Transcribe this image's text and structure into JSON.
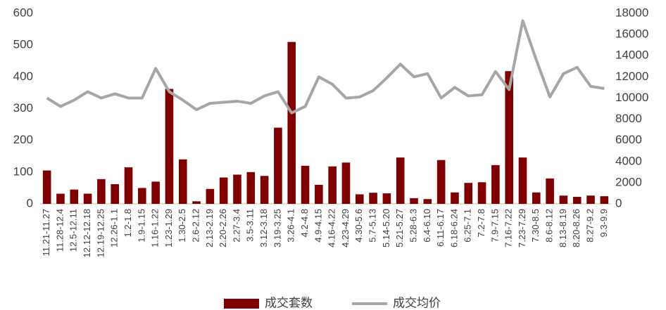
{
  "chart_data": {
    "type": "bar_line",
    "categories": [
      "11.21-11.27",
      "11.28-12.4",
      "12.5-12.11",
      "12.12-12.18",
      "12.19-12.25",
      "12.26-1.1",
      "1.2-1.8",
      "1.9-1.15",
      "1.16-1.22",
      "1.23-1.29",
      "1.30-2.5",
      "2.6-2.12",
      "2.13-2.19",
      "2.20-2.26",
      "2.27-3.4",
      "3.5-3.11",
      "3.12-3.18",
      "3.19-3.25",
      "3.26-4.1",
      "4.2-4.8",
      "4.9-4.15",
      "4.16-4.22",
      "4.23-4.29",
      "4.30-5.6",
      "5.7-5.13",
      "5.14-5.20",
      "5.21-5.27",
      "5.28-6.3",
      "6.4-6.10",
      "6.11-6.17",
      "6.18-6.24",
      "6.25-7.1",
      "7.2-7.8",
      "7.9-7.15",
      "7.16-7.22",
      "7.23-7.29",
      "7.30-8.5",
      "8.6-8.12",
      "8.13-8.19",
      "8.20-8.26",
      "8.27-9.2",
      "9.3-9.9"
    ],
    "series": [
      {
        "name": "成交套数",
        "type": "bar",
        "color": "#7f0000",
        "values": [
          105,
          32,
          45,
          32,
          78,
          62,
          115,
          50,
          70,
          362,
          140,
          8,
          47,
          83,
          92,
          100,
          88,
          240,
          510,
          120,
          60,
          118,
          130,
          30,
          35,
          33,
          146,
          18,
          15,
          138,
          36,
          66,
          68,
          122,
          418,
          146,
          36,
          80,
          26,
          22,
          26,
          24
        ]
      },
      {
        "name": "成交均价",
        "type": "line",
        "axis": "y2",
        "color": "#a6a6a6",
        "values": [
          10000,
          9200,
          9800,
          10600,
          10000,
          10400,
          10000,
          10000,
          12800,
          10600,
          9800,
          8900,
          9500,
          9600,
          9700,
          9500,
          10200,
          10600,
          8600,
          9200,
          12000,
          11300,
          10000,
          10100,
          10700,
          11900,
          13200,
          12000,
          12300,
          10000,
          11000,
          10200,
          10300,
          12500,
          10800,
          17300,
          13600,
          10100,
          12300,
          12900,
          11100,
          10900
        ]
      }
    ],
    "ylim": [
      0,
      600
    ],
    "yticks": [
      0,
      100,
      200,
      300,
      400,
      500,
      600
    ],
    "y2lim": [
      0,
      18000
    ],
    "y2ticks": [
      0,
      2000,
      4000,
      6000,
      8000,
      10000,
      12000,
      14000,
      16000,
      18000
    ],
    "legend": "bottom"
  }
}
